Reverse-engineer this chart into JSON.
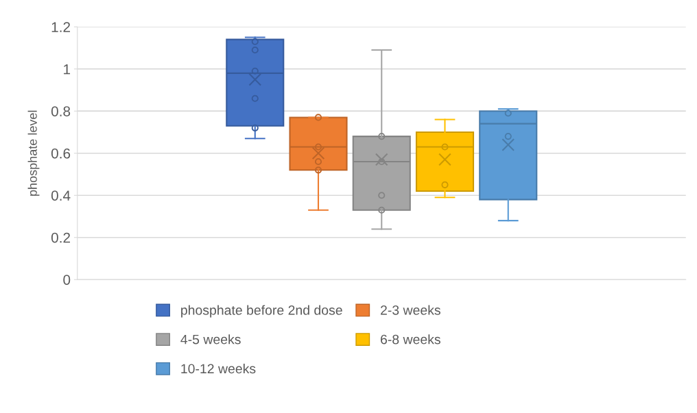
{
  "chart_data": {
    "type": "box",
    "ylabel": "phosphate level",
    "categories": [
      null
    ],
    "series": [
      {
        "name": "phosphate before 2nd dose",
        "color": "#4472c4",
        "boxes": [
          {
            "low": 0.67,
            "q1": 0.73,
            "median": 0.98,
            "q3": 1.14,
            "high": 1.15,
            "mean": 0.95,
            "outliers": [
              1.13,
              1.09,
              0.99,
              0.86,
              0.72
            ]
          }
        ]
      },
      {
        "name": "2-3 weeks",
        "color": "#ed7d31",
        "boxes": [
          {
            "low": 0.33,
            "q1": 0.52,
            "median": 0.63,
            "q3": 0.77,
            "high": 0.77,
            "mean": 0.6,
            "outliers": [
              0.77,
              0.63,
              0.56,
              0.52
            ]
          }
        ]
      },
      {
        "name": "4-5 weeks",
        "color": "#a5a5a5",
        "boxes": [
          {
            "low": 0.24,
            "q1": 0.33,
            "median": 0.56,
            "q3": 0.68,
            "high": 1.09,
            "mean": 0.57,
            "outliers": [
              0.68,
              0.56,
              0.4,
              0.33
            ]
          }
        ]
      },
      {
        "name": "6-8 weeks",
        "color": "#ffc000",
        "boxes": [
          {
            "low": 0.39,
            "q1": 0.42,
            "median": 0.63,
            "q3": 0.7,
            "high": 0.76,
            "mean": 0.57,
            "outliers": [
              0.63,
              0.45
            ]
          }
        ]
      },
      {
        "name": "10-12 weeks",
        "color": "#5b9bd5",
        "boxes": [
          {
            "low": 0.28,
            "q1": 0.38,
            "median": 0.74,
            "q3": 0.8,
            "high": 0.81,
            "mean": 0.64,
            "outliers": [
              0.79,
              0.68
            ]
          }
        ]
      }
    ],
    "ylim": [
      0,
      1.2
    ],
    "yticks": [
      0,
      0.2,
      0.4,
      0.6,
      0.8,
      1,
      1.2
    ],
    "grid": "y",
    "legend": "bottom",
    "marker": "circle"
  }
}
